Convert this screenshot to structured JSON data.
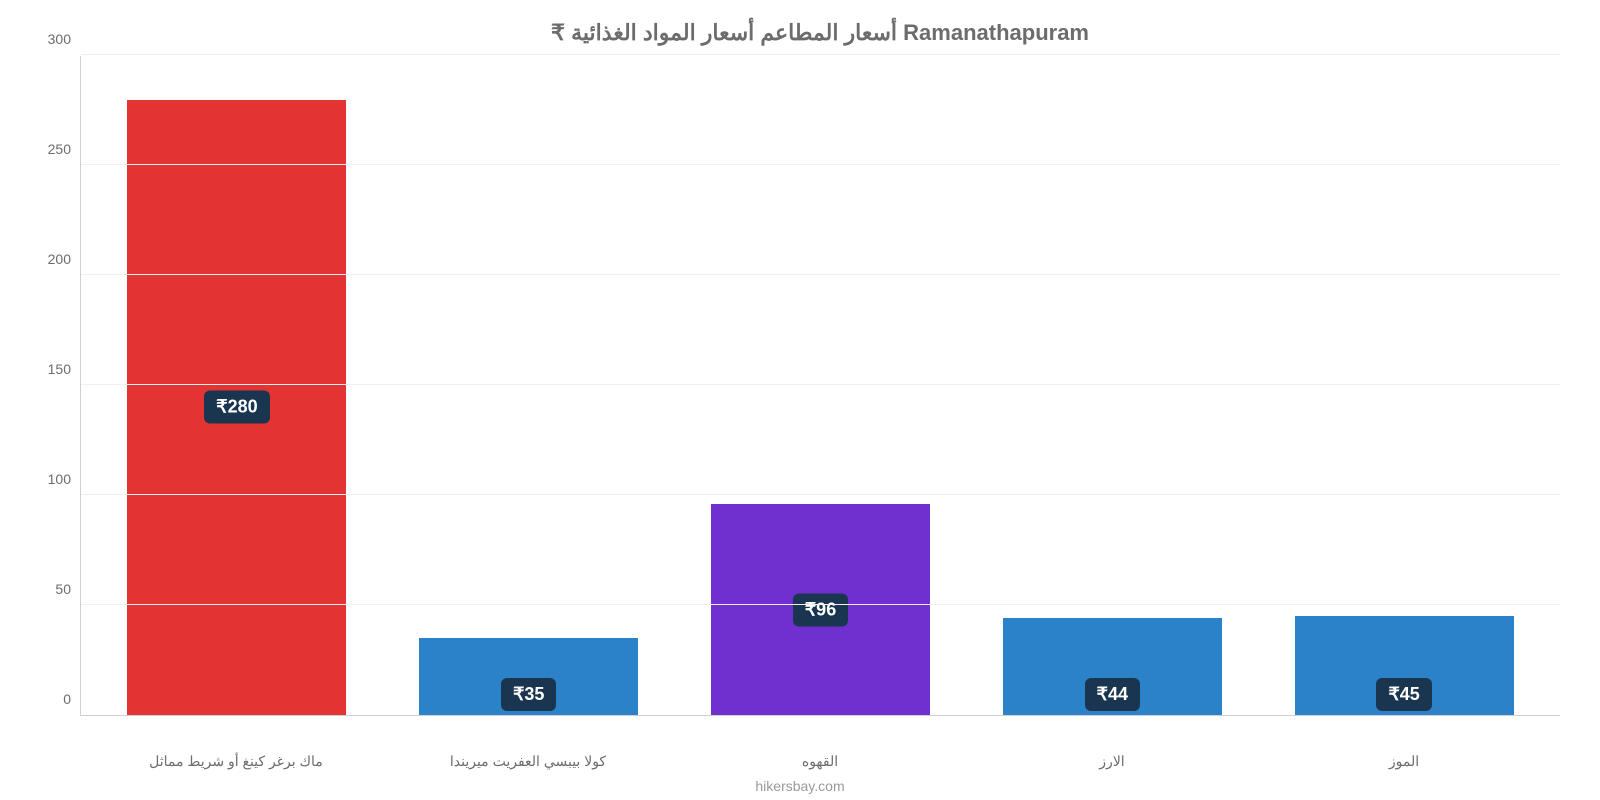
{
  "chart": {
    "type": "bar",
    "title": "₹ أسعار المطاعم أسعار المواد الغذائية Ramanathapuram",
    "title_fontsize": 22,
    "title_color": "#6c6c6c",
    "background_color": "#ffffff",
    "grid_color": "#f0f0f0",
    "axis_color": "#d0d0d0",
    "tick_color": "#6c6c6c",
    "tick_fontsize": 14,
    "xlabel_fontsize": 14,
    "bar_width": 0.75,
    "ylim": [
      0,
      300
    ],
    "ytick_step": 50,
    "yticks": [
      0,
      50,
      100,
      150,
      200,
      250,
      300
    ],
    "categories": [
      "ماك برغر كينغ أو شريط مماثل",
      "كولا بيبسي العفريت ميريندا",
      "القهوه",
      "الارز",
      "الموز"
    ],
    "values": [
      280,
      35,
      96,
      44,
      45
    ],
    "value_labels": [
      "₹280",
      "₹35",
      "₹96",
      "₹44",
      "₹45"
    ],
    "bar_colors": [
      "#e43333",
      "#2c82c9",
      "#7030d0",
      "#2c82c9",
      "#2c82c9"
    ],
    "value_label_bg": "#1a3550",
    "value_label_color": "#ffffff",
    "value_label_fontsize": 18,
    "value_label_radius": 6,
    "caption": "hikersbay.com",
    "caption_color": "#9a9a9a",
    "caption_fontsize": 14
  }
}
